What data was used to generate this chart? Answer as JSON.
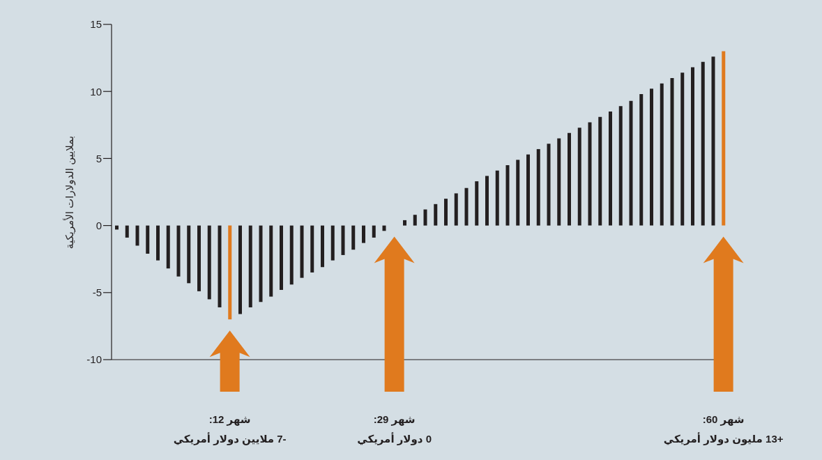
{
  "chart_data": {
    "type": "bar",
    "ylabel": "بملايين الدولارات الأمريكية",
    "categories": [
      null,
      null,
      null,
      null,
      null,
      null,
      null,
      null,
      null,
      null,
      null,
      null,
      null,
      null,
      null,
      null,
      null,
      null,
      null,
      null,
      null,
      null,
      null,
      null,
      null,
      null,
      null,
      null,
      null,
      null,
      null,
      null,
      null,
      null,
      null,
      null,
      null,
      null,
      null,
      null,
      null,
      null,
      null,
      null,
      null,
      null,
      null,
      null,
      null,
      null,
      null,
      null,
      null,
      null,
      null,
      null,
      null,
      null,
      null,
      null
    ],
    "values": [
      -0.3,
      -0.9,
      -1.5,
      -2.1,
      -2.6,
      -3.2,
      -3.8,
      -4.3,
      -4.9,
      -5.5,
      -6.1,
      -7.0,
      -6.6,
      -6.1,
      -5.7,
      -5.3,
      -4.8,
      -4.4,
      -3.9,
      -3.5,
      -3.1,
      -2.6,
      -2.2,
      -1.8,
      -1.3,
      -0.9,
      -0.4,
      0,
      0.4,
      0.8,
      1.2,
      1.6,
      2.0,
      2.4,
      2.8,
      3.3,
      3.7,
      4.1,
      4.5,
      4.9,
      5.3,
      5.7,
      6.1,
      6.5,
      6.9,
      7.3,
      7.7,
      8.1,
      8.5,
      8.9,
      9.3,
      9.8,
      10.2,
      10.6,
      11.0,
      11.4,
      11.8,
      12.2,
      12.6,
      13.0
    ],
    "color": "#231f20",
    "colors": [
      "#231f20",
      "#231f20",
      "#231f20",
      "#231f20",
      "#231f20",
      "#231f20",
      "#231f20",
      "#231f20",
      "#231f20",
      "#231f20",
      "#231f20",
      "#e07a1e",
      "#231f20",
      "#231f20",
      "#231f20",
      "#231f20",
      "#231f20",
      "#231f20",
      "#231f20",
      "#231f20",
      "#231f20",
      "#231f20",
      "#231f20",
      "#231f20",
      "#231f20",
      "#231f20",
      "#231f20",
      "#e07a1e",
      "#231f20",
      "#231f20",
      "#231f20",
      "#231f20",
      "#231f20",
      "#231f20",
      "#231f20",
      "#231f20",
      "#231f20",
      "#231f20",
      "#231f20",
      "#231f20",
      "#231f20",
      "#231f20",
      "#231f20",
      "#231f20",
      "#231f20",
      "#231f20",
      "#231f20",
      "#231f20",
      "#231f20",
      "#231f20",
      "#231f20",
      "#231f20",
      "#231f20",
      "#231f20",
      "#231f20",
      "#231f20",
      "#231f20",
      "#231f20",
      "#231f20",
      "#e07a1e"
    ],
    "ylim": [
      -10,
      15
    ],
    "yticks": [
      -10,
      -5,
      0,
      5,
      10,
      15
    ],
    "grid": false,
    "legend": false,
    "annotations": [
      "شهر 12:\n-7 ملايين دولار أمريكي",
      "شهر 29:\n0 دولار أمريكي",
      "شهر 60:\n+13 مليون دولار أمريكي"
    ]
  }
}
